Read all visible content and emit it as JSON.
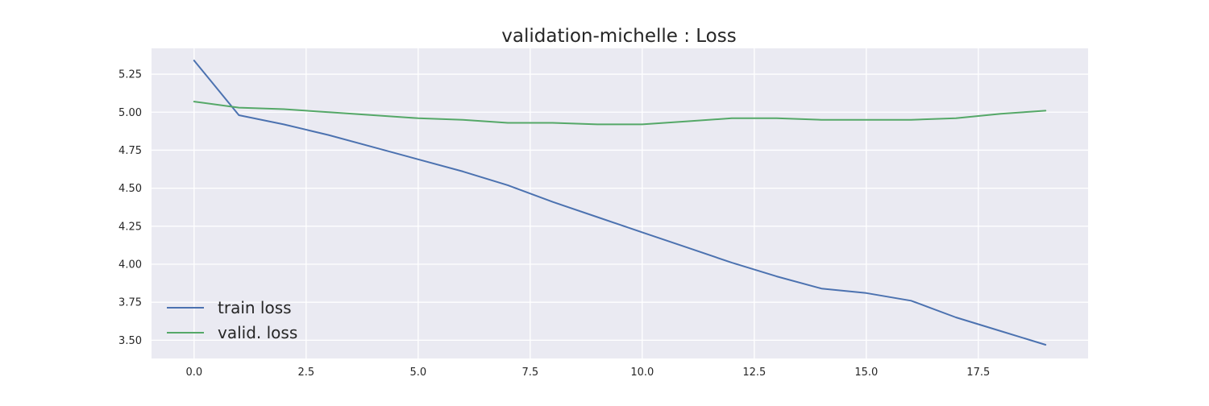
{
  "chart_data": {
    "type": "line",
    "title": "validation-michelle : Loss",
    "xlabel": "",
    "ylabel": "",
    "xlim": [
      -0.95,
      19.95
    ],
    "ylim": [
      3.38,
      5.42
    ],
    "xticks": [
      0.0,
      2.5,
      5.0,
      7.5,
      10.0,
      12.5,
      15.0,
      17.5
    ],
    "xtick_labels": [
      "0.0",
      "2.5",
      "5.0",
      "7.5",
      "10.0",
      "12.5",
      "15.0",
      "17.5"
    ],
    "yticks": [
      3.5,
      3.75,
      4.0,
      4.25,
      4.5,
      4.75,
      5.0,
      5.25
    ],
    "ytick_labels": [
      "3.50",
      "3.75",
      "4.00",
      "4.25",
      "4.50",
      "4.75",
      "5.00",
      "5.25"
    ],
    "grid": true,
    "legend_position": "lower-left",
    "background_color": "#eaeaf2",
    "grid_color": "#ffffff",
    "x": [
      0,
      1,
      2,
      3,
      4,
      5,
      6,
      7,
      8,
      9,
      10,
      11,
      12,
      13,
      14,
      15,
      16,
      17,
      18,
      19
    ],
    "series": [
      {
        "name": "train loss",
        "color": "#4c72b0",
        "values": [
          5.34,
          4.98,
          4.92,
          4.85,
          4.77,
          4.69,
          4.61,
          4.52,
          4.41,
          4.31,
          4.21,
          4.11,
          4.01,
          3.92,
          3.84,
          3.81,
          3.76,
          3.65,
          3.56,
          3.47
        ]
      },
      {
        "name": "valid. loss",
        "color": "#55a868",
        "values": [
          5.07,
          5.03,
          5.02,
          5.0,
          4.98,
          4.96,
          4.95,
          4.93,
          4.93,
          4.92,
          4.92,
          4.94,
          4.96,
          4.96,
          4.95,
          4.95,
          4.95,
          4.96,
          4.99,
          5.01
        ]
      }
    ]
  }
}
